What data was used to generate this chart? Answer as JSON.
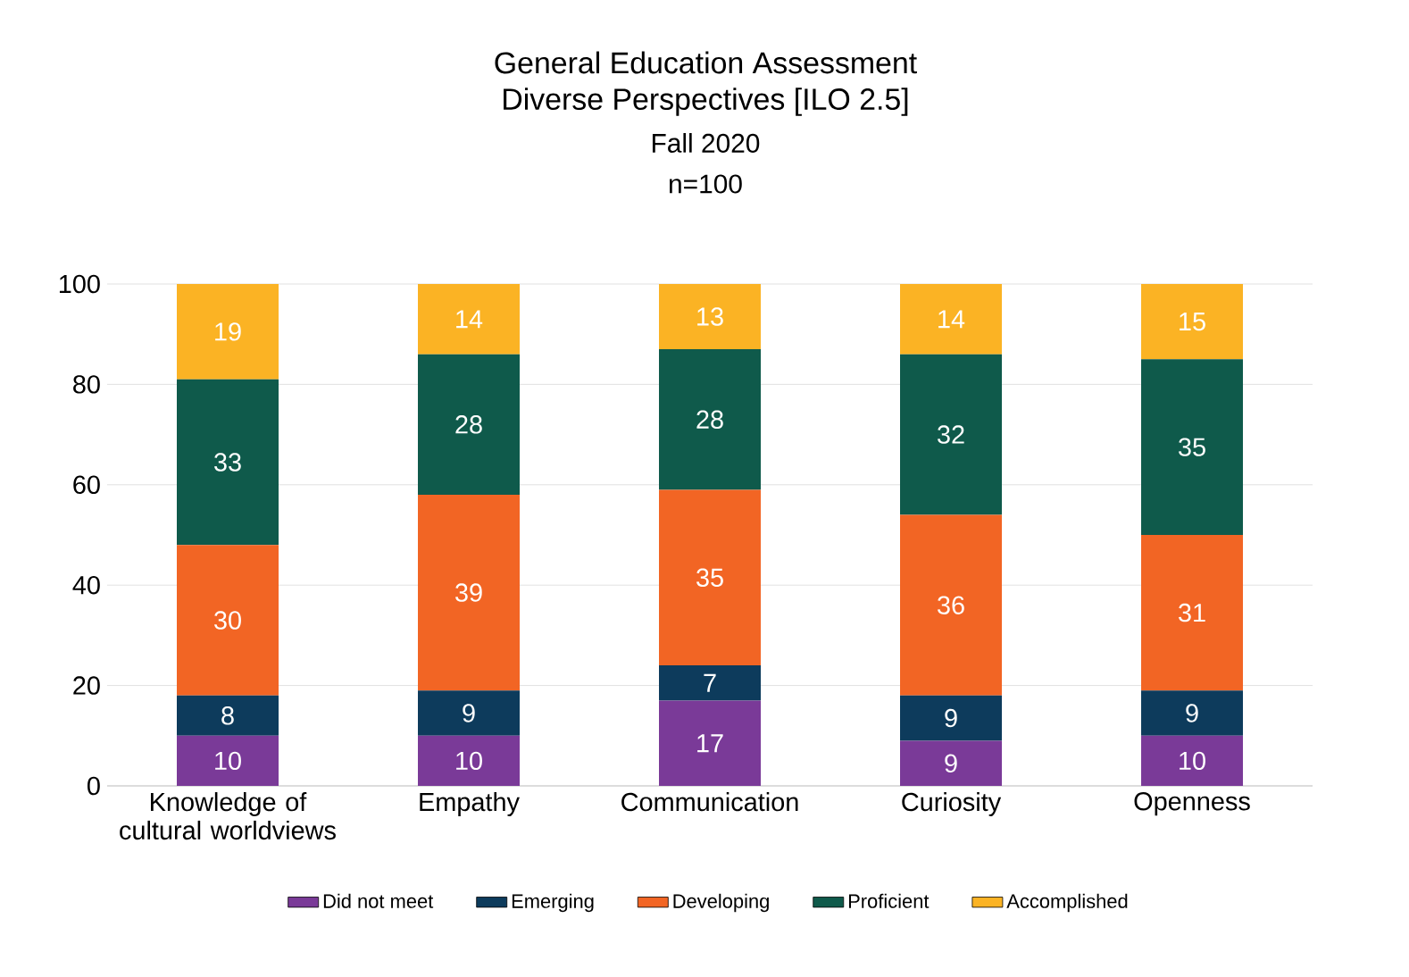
{
  "chart_data": {
    "type": "bar",
    "title": "General Education Assessment",
    "subtitle": "Diverse Perspectives [ILO 2.5]",
    "annotations": [
      "Fall 2020",
      "n=100"
    ],
    "categories": [
      "Knowledge of cultural worldviews",
      "Empathy",
      "Communication",
      "Curiosity",
      "Openness"
    ],
    "series": [
      {
        "name": "Did not meet",
        "color": "#7a3a98",
        "values": [
          10,
          10,
          17,
          9,
          10
        ]
      },
      {
        "name": "Emerging",
        "color": "#0d3b5c",
        "values": [
          8,
          9,
          7,
          9,
          9
        ]
      },
      {
        "name": "Developing",
        "color": "#f26524",
        "values": [
          30,
          39,
          35,
          36,
          31
        ]
      },
      {
        "name": "Proficient",
        "color": "#0f5a4b",
        "values": [
          33,
          28,
          28,
          32,
          35
        ]
      },
      {
        "name": "Accomplished",
        "color": "#fbb324",
        "values": [
          19,
          14,
          13,
          14,
          15
        ]
      }
    ],
    "stacked": true,
    "data_labels": true,
    "grid": "y",
    "legend": "bottom",
    "ylim": [
      0,
      100
    ],
    "yticks": [
      0,
      20,
      40,
      60,
      80,
      100
    ]
  }
}
